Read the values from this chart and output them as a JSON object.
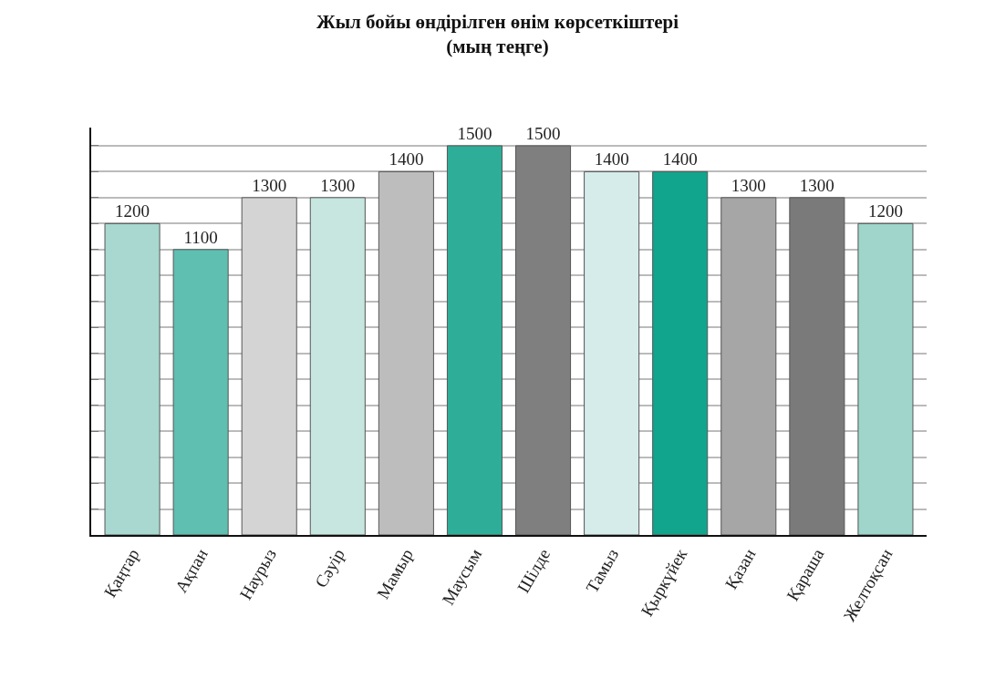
{
  "chart_data": {
    "type": "bar",
    "title": "Жыл бойы өндірілген өнім көрсеткіштері",
    "subtitle": "(мың теңге)",
    "categories": [
      "Қаңтар",
      "Ақпан",
      "Наурыз",
      "Сәуір",
      "Мамыр",
      "Маусым",
      "Шілде",
      "Тамыз",
      "Қыркүйек",
      "Қазан",
      "Қараша",
      "Желтоқсан"
    ],
    "values": [
      1200,
      1100,
      1300,
      1300,
      1400,
      1500,
      1500,
      1400,
      1400,
      1300,
      1300,
      1200
    ],
    "colors": [
      "#a8d8cf",
      "#5fbfb0",
      "#d4d4d4",
      "#c6e6df",
      "#bdbdbd",
      "#2eae98",
      "#7f7f7f",
      "#d6ecea",
      "#10a58c",
      "#a6a6a6",
      "#7a7a7a",
      "#9fd5cb"
    ],
    "ylim": [
      0,
      1570
    ],
    "yticks": [
      {
        "value": 0,
        "label": null
      },
      {
        "value": 100,
        "label": null
      },
      {
        "value": 200,
        "label": null
      },
      {
        "value": 300,
        "label": null
      },
      {
        "value": 400,
        "label": null
      },
      {
        "value": 500,
        "label": null
      },
      {
        "value": 600,
        "label": null
      },
      {
        "value": 700,
        "label": null
      },
      {
        "value": 800,
        "label": null
      },
      {
        "value": 900,
        "label": null
      },
      {
        "value": 1000,
        "label": null
      },
      {
        "value": 1100,
        "label": null
      },
      {
        "value": 1200,
        "label": null
      },
      {
        "value": 1300,
        "label": null
      },
      {
        "value": 1400,
        "label": null
      },
      {
        "value": 1500,
        "label": null
      }
    ],
    "tick_labels": "x",
    "grid": "y",
    "data_labels": true
  }
}
